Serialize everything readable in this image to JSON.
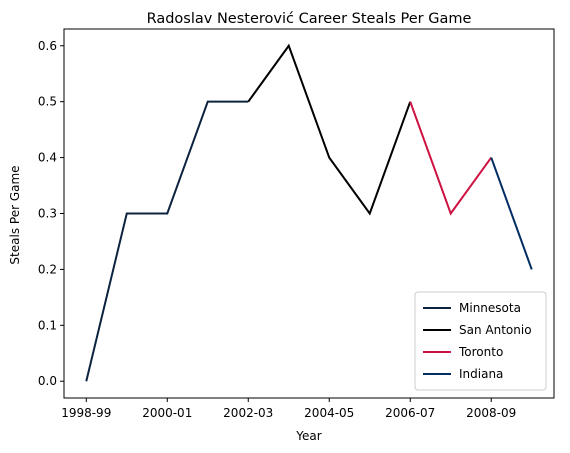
{
  "chart_data": {
    "type": "line",
    "title": "Radoslav Nesterović Career Steals Per Game",
    "xlabel": "Year",
    "ylabel": "Steals Per Game",
    "ylim": [
      -0.03,
      0.63
    ],
    "yticks": [
      0.0,
      0.1,
      0.2,
      0.3,
      0.4,
      0.5,
      0.6
    ],
    "ytick_labels": [
      "0.0",
      "0.1",
      "0.2",
      "0.3",
      "0.4",
      "0.5",
      "0.6"
    ],
    "seasons": [
      "1998-99",
      "1999-00",
      "2000-01",
      "2001-02",
      "2002-03",
      "2003-04",
      "2004-05",
      "2005-06",
      "2006-07",
      "2007-08",
      "2008-09",
      "2009-10"
    ],
    "xtick_labels": [
      "1998-99",
      "2000-01",
      "2002-03",
      "2004-05",
      "2006-07",
      "2008-09"
    ],
    "grid": false,
    "legend_position": "lower-right",
    "series": [
      {
        "name": "Minnesota",
        "color": "#0c2340",
        "x": [
          "1998-99",
          "1999-00",
          "2000-01",
          "2001-02",
          "2002-03"
        ],
        "y": [
          0.0,
          0.3,
          0.3,
          0.5,
          0.5
        ]
      },
      {
        "name": "San Antonio",
        "color": "#000000",
        "x": [
          "2002-03",
          "2003-04",
          "2004-05",
          "2005-06",
          "2006-07"
        ],
        "y": [
          0.5,
          0.6,
          0.4,
          0.3,
          0.5
        ]
      },
      {
        "name": "Toronto",
        "color": "#ce1141",
        "x": [
          "2006-07",
          "2007-08",
          "2008-09"
        ],
        "y": [
          0.5,
          0.3,
          0.4
        ]
      },
      {
        "name": "Indiana",
        "color": "#002d62",
        "x": [
          "2008-09",
          "2009-10"
        ],
        "y": [
          0.4,
          0.2
        ]
      }
    ]
  }
}
